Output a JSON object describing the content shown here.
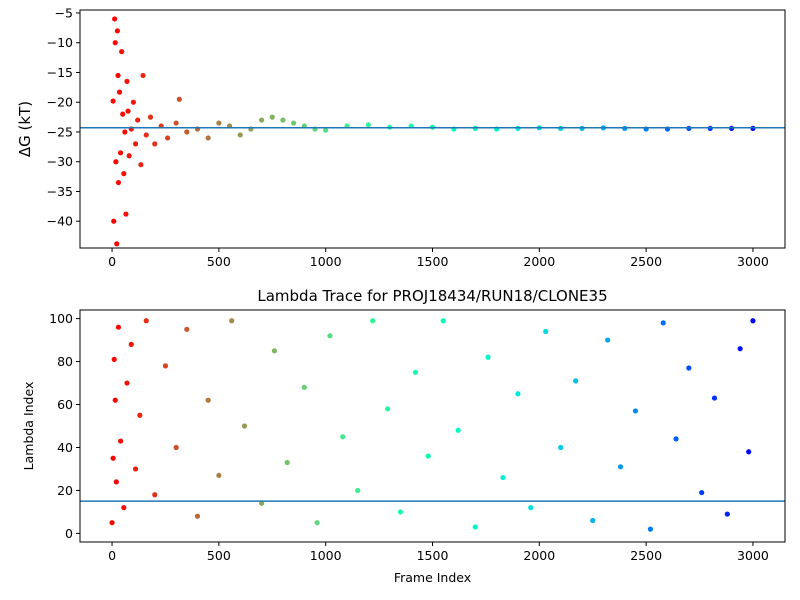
{
  "chart_data": [
    {
      "type": "scatter",
      "title": "",
      "xlabel": "",
      "ylabel": "ΔG (kT)",
      "xlim": [
        -150,
        3150
      ],
      "ylim": [
        -44.5,
        -4.5
      ],
      "xticks": [
        0,
        500,
        1000,
        1500,
        2000,
        2500,
        3000
      ],
      "yticks": [
        -40,
        -35,
        -30,
        -25,
        -20,
        -15,
        -10,
        -5
      ],
      "reference_line": {
        "y": -24.3,
        "color": "#1f77b4"
      },
      "colormap": "rainbow",
      "series": [
        {
          "values": [
            {
              "x": 5,
              "y": -19.8
            },
            {
              "x": 8,
              "y": -40.0
            },
            {
              "x": 12,
              "y": -6.0
            },
            {
              "x": 15,
              "y": -10.0
            },
            {
              "x": 18,
              "y": -30.0
            },
            {
              "x": 22,
              "y": -43.8
            },
            {
              "x": 25,
              "y": -8.0
            },
            {
              "x": 28,
              "y": -15.5
            },
            {
              "x": 30,
              "y": -33.5
            },
            {
              "x": 35,
              "y": -18.3
            },
            {
              "x": 40,
              "y": -28.5
            },
            {
              "x": 45,
              "y": -11.5
            },
            {
              "x": 50,
              "y": -22.0
            },
            {
              "x": 55,
              "y": -32.0
            },
            {
              "x": 60,
              "y": -25.0
            },
            {
              "x": 65,
              "y": -38.8
            },
            {
              "x": 70,
              "y": -16.5
            },
            {
              "x": 75,
              "y": -21.5
            },
            {
              "x": 80,
              "y": -29.0
            },
            {
              "x": 90,
              "y": -24.5
            },
            {
              "x": 100,
              "y": -20.0
            },
            {
              "x": 110,
              "y": -27.0
            },
            {
              "x": 120,
              "y": -23.0
            },
            {
              "x": 135,
              "y": -30.5
            },
            {
              "x": 145,
              "y": -15.5
            },
            {
              "x": 160,
              "y": -25.5
            },
            {
              "x": 180,
              "y": -22.5
            },
            {
              "x": 200,
              "y": -27.0
            },
            {
              "x": 230,
              "y": -24.0
            },
            {
              "x": 260,
              "y": -26.0
            },
            {
              "x": 300,
              "y": -23.5
            },
            {
              "x": 315,
              "y": -19.5
            },
            {
              "x": 350,
              "y": -25.0
            },
            {
              "x": 400,
              "y": -24.5
            },
            {
              "x": 450,
              "y": -26.0
            },
            {
              "x": 500,
              "y": -23.5
            },
            {
              "x": 550,
              "y": -24.0
            },
            {
              "x": 600,
              "y": -25.5
            },
            {
              "x": 650,
              "y": -24.5
            },
            {
              "x": 700,
              "y": -23.0
            },
            {
              "x": 750,
              "y": -22.5
            },
            {
              "x": 800,
              "y": -23.0
            },
            {
              "x": 850,
              "y": -23.5
            },
            {
              "x": 900,
              "y": -24.0
            },
            {
              "x": 950,
              "y": -24.5
            },
            {
              "x": 1000,
              "y": -24.7
            },
            {
              "x": 1100,
              "y": -24.0
            },
            {
              "x": 1200,
              "y": -23.8
            },
            {
              "x": 1300,
              "y": -24.2
            },
            {
              "x": 1400,
              "y": -24.0
            },
            {
              "x": 1500,
              "y": -24.2
            },
            {
              "x": 1600,
              "y": -24.5
            },
            {
              "x": 1700,
              "y": -24.4
            },
            {
              "x": 1800,
              "y": -24.5
            },
            {
              "x": 1900,
              "y": -24.4
            },
            {
              "x": 2000,
              "y": -24.3
            },
            {
              "x": 2100,
              "y": -24.4
            },
            {
              "x": 2200,
              "y": -24.4
            },
            {
              "x": 2300,
              "y": -24.3
            },
            {
              "x": 2400,
              "y": -24.4
            },
            {
              "x": 2500,
              "y": -24.5
            },
            {
              "x": 2600,
              "y": -24.5
            },
            {
              "x": 2700,
              "y": -24.4
            },
            {
              "x": 2800,
              "y": -24.4
            },
            {
              "x": 2900,
              "y": -24.4
            },
            {
              "x": 3000,
              "y": -24.4
            }
          ]
        }
      ]
    },
    {
      "type": "scatter",
      "title": "Lambda Trace for PROJ18434/RUN18/CLONE35",
      "xlabel": "Frame Index",
      "ylabel": "Lambda Index",
      "xlim": [
        -150,
        3150
      ],
      "ylim": [
        -4,
        104
      ],
      "xticks": [
        0,
        500,
        1000,
        1500,
        2000,
        2500,
        3000
      ],
      "yticks": [
        0,
        20,
        40,
        60,
        80,
        100
      ],
      "reference_line": {
        "y": 15,
        "color": "#1f77b4"
      },
      "colormap": "rainbow",
      "series": [
        {
          "values": [
            {
              "x": 0,
              "y": 5
            },
            {
              "x": 5,
              "y": 35
            },
            {
              "x": 10,
              "y": 81
            },
            {
              "x": 15,
              "y": 62
            },
            {
              "x": 20,
              "y": 24
            },
            {
              "x": 30,
              "y": 96
            },
            {
              "x": 40,
              "y": 43
            },
            {
              "x": 55,
              "y": 12
            },
            {
              "x": 70,
              "y": 70
            },
            {
              "x": 90,
              "y": 88
            },
            {
              "x": 110,
              "y": 30
            },
            {
              "x": 130,
              "y": 55
            },
            {
              "x": 160,
              "y": 99
            },
            {
              "x": 200,
              "y": 18
            },
            {
              "x": 250,
              "y": 78
            },
            {
              "x": 300,
              "y": 40
            },
            {
              "x": 350,
              "y": 95
            },
            {
              "x": 400,
              "y": 8
            },
            {
              "x": 450,
              "y": 62
            },
            {
              "x": 500,
              "y": 27
            },
            {
              "x": 560,
              "y": 99
            },
            {
              "x": 620,
              "y": 50
            },
            {
              "x": 700,
              "y": 14
            },
            {
              "x": 760,
              "y": 85
            },
            {
              "x": 820,
              "y": 33
            },
            {
              "x": 900,
              "y": 68
            },
            {
              "x": 960,
              "y": 5
            },
            {
              "x": 1020,
              "y": 92
            },
            {
              "x": 1080,
              "y": 45
            },
            {
              "x": 1150,
              "y": 20
            },
            {
              "x": 1220,
              "y": 99
            },
            {
              "x": 1290,
              "y": 58
            },
            {
              "x": 1350,
              "y": 10
            },
            {
              "x": 1420,
              "y": 75
            },
            {
              "x": 1480,
              "y": 36
            },
            {
              "x": 1550,
              "y": 99
            },
            {
              "x": 1620,
              "y": 48
            },
            {
              "x": 1700,
              "y": 3
            },
            {
              "x": 1760,
              "y": 82
            },
            {
              "x": 1830,
              "y": 26
            },
            {
              "x": 1900,
              "y": 65
            },
            {
              "x": 1960,
              "y": 12
            },
            {
              "x": 2030,
              "y": 94
            },
            {
              "x": 2100,
              "y": 40
            },
            {
              "x": 2170,
              "y": 71
            },
            {
              "x": 2250,
              "y": 6
            },
            {
              "x": 2320,
              "y": 90
            },
            {
              "x": 2380,
              "y": 31
            },
            {
              "x": 2450,
              "y": 57
            },
            {
              "x": 2520,
              "y": 2
            },
            {
              "x": 2580,
              "y": 98
            },
            {
              "x": 2640,
              "y": 44
            },
            {
              "x": 2700,
              "y": 77
            },
            {
              "x": 2760,
              "y": 19
            },
            {
              "x": 2820,
              "y": 63
            },
            {
              "x": 2880,
              "y": 9
            },
            {
              "x": 2940,
              "y": 86
            },
            {
              "x": 2980,
              "y": 38
            },
            {
              "x": 3000,
              "y": 99
            }
          ]
        }
      ]
    }
  ]
}
